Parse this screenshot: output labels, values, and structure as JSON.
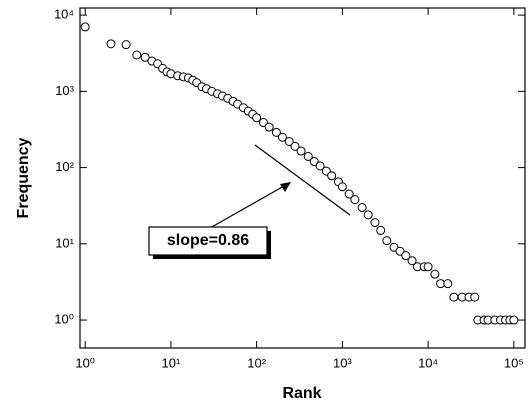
{
  "chart_data": {
    "type": "scatter",
    "x_label": "Rank",
    "y_label": "Frequency",
    "annotation": "slope=0.86",
    "xscale": "log",
    "yscale": "log",
    "xlim": [
      0.87,
      135000
    ],
    "ylim": [
      0.43,
      12400
    ],
    "xticks": [
      {
        "value": 1,
        "label": "10⁰"
      },
      {
        "value": 10,
        "label": "10¹"
      },
      {
        "value": 100,
        "label": "10²"
      },
      {
        "value": 1000,
        "label": "10³"
      },
      {
        "value": 10000,
        "label": "10⁴"
      },
      {
        "value": 100000,
        "label": "10⁵"
      }
    ],
    "yticks": [
      {
        "value": 1,
        "label": "10⁰"
      },
      {
        "value": 10,
        "label": "10¹"
      },
      {
        "value": 100,
        "label": "10²"
      },
      {
        "value": 1000,
        "label": "10³"
      },
      {
        "value": 10000,
        "label": "10⁴"
      }
    ],
    "marker_fill": "#ffffff",
    "marker_edge": "#000000",
    "x": [
      1,
      2,
      3,
      4,
      5,
      6,
      7,
      8,
      9,
      10,
      12,
      14,
      16,
      18,
      20,
      23,
      26,
      30,
      35,
      40,
      46,
      53,
      60,
      70,
      80,
      90,
      100,
      120,
      140,
      170,
      200,
      240,
      280,
      330,
      400,
      470,
      550,
      650,
      750,
      900,
      1000,
      1200,
      1400,
      1700,
      2000,
      2400,
      2800,
      3300,
      4000,
      4700,
      5500,
      6500,
      7500,
      9000,
      10000,
      12000,
      14000,
      17000,
      20000,
      25000,
      30000,
      35000,
      38000,
      45000,
      50000,
      60000,
      70000,
      80000,
      90000,
      100000
    ],
    "values": [
      7000,
      4200,
      4100,
      3000,
      2800,
      2500,
      2300,
      2000,
      1800,
      1700,
      1600,
      1550,
      1500,
      1400,
      1300,
      1150,
      1080,
      1000,
      930,
      870,
      810,
      740,
      680,
      610,
      550,
      500,
      450,
      390,
      340,
      290,
      250,
      220,
      190,
      165,
      140,
      120,
      105,
      90,
      78,
      65,
      56,
      45,
      38,
      30,
      24,
      19,
      15,
      11,
      9,
      8,
      7,
      6,
      5,
      5,
      5,
      4,
      3,
      3,
      2,
      2,
      2,
      2,
      1,
      1,
      1,
      1,
      1,
      1,
      1,
      1
    ]
  }
}
